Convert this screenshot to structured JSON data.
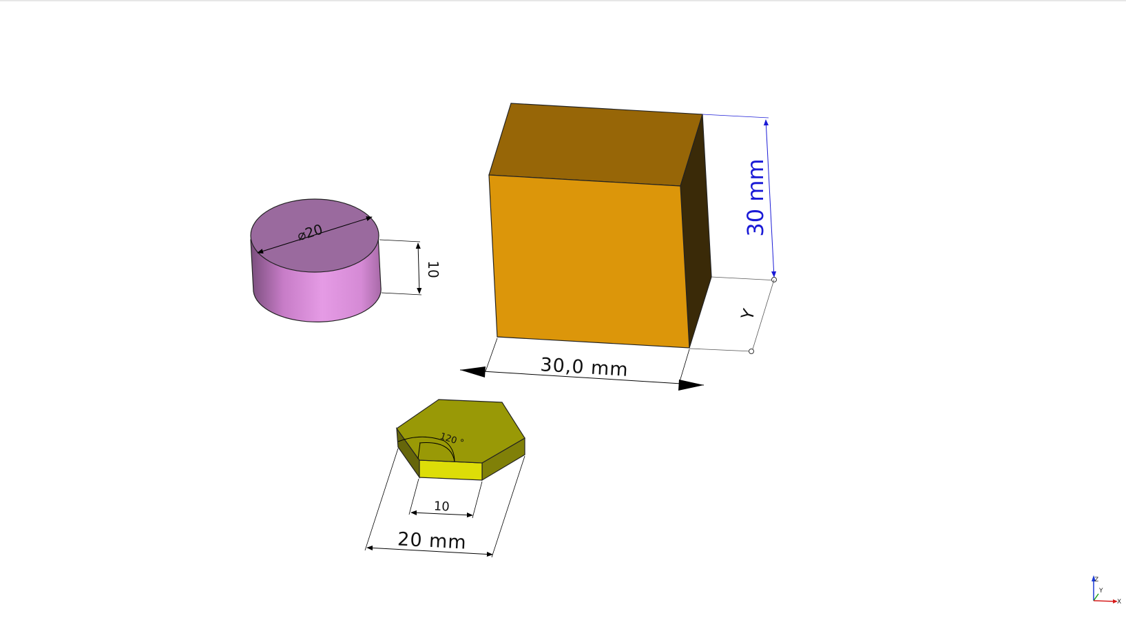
{
  "viewport": {
    "background": "#ffffff"
  },
  "objects": {
    "cylinder": {
      "diameter_label": "⌀20",
      "height_label": "10",
      "color_top": "#9a6a9e",
      "color_side": "#e095e0"
    },
    "cube": {
      "width_label": "30,0 mm",
      "height_label": "30 mm",
      "depth_label": "Y",
      "color_front": "#dc960a",
      "color_top": "#976607",
      "color_side": "#3a2a08"
    },
    "hexagon": {
      "angle_label": "120 °",
      "side_label": "10",
      "width_label": "20 mm",
      "color_top": "#999906",
      "color_front": "#dddd08",
      "color_side": "#66660a"
    }
  },
  "axis_triad": {
    "z_label": "Z",
    "y_label": "Y",
    "x_label": "X",
    "z_color": "#1a3ad6",
    "y_color": "#1aa01a",
    "x_color": "#d61a1a"
  }
}
